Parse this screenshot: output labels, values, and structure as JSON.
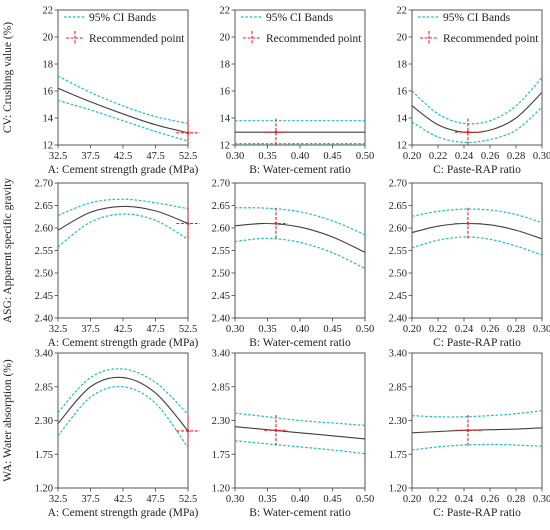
{
  "figure": {
    "legend_ci": "95% CI Bands",
    "legend_rec": "Recommended point",
    "colors": {
      "fit": "#404040",
      "ci": "#1fbfbf",
      "rec": "#e8202a",
      "axis": "#444444"
    }
  },
  "chart_data": [
    {
      "type": "line",
      "row": 0,
      "col": 0,
      "ylabel": "CV: Crushing value (%)",
      "xlabel": "A: Cement strength grade (MPa)",
      "xticks": [
        "32.5",
        "37.5",
        "42.5",
        "47.5",
        "52.5"
      ],
      "xlim": [
        32.5,
        52.5
      ],
      "yticks": [
        "12",
        "14",
        "16",
        "18",
        "20",
        "22"
      ],
      "ylim": [
        12,
        22
      ],
      "x": [
        32.5,
        37.5,
        42.5,
        47.5,
        52.5
      ],
      "series": [
        {
          "role": "fit",
          "values": [
            16.2,
            15.2,
            14.3,
            13.5,
            12.9
          ]
        },
        {
          "role": "ci_upper",
          "values": [
            17.1,
            15.9,
            14.9,
            14.1,
            13.6
          ]
        },
        {
          "role": "ci_lower",
          "values": [
            15.3,
            14.6,
            13.8,
            13.0,
            12.3
          ]
        }
      ],
      "recommended": {
        "x": 52.5,
        "y": 12.9,
        "x_err": 1.8,
        "y_err": 1.0
      },
      "legend": true
    },
    {
      "type": "line",
      "row": 0,
      "col": 1,
      "ylabel": "",
      "xlabel": "B: Water-cement ratio",
      "xticks": [
        "0.30",
        "0.35",
        "0.40",
        "0.45",
        "0.50"
      ],
      "xlim": [
        0.3,
        0.5
      ],
      "yticks": [
        "12",
        "14",
        "16",
        "18",
        "20",
        "22"
      ],
      "ylim": [
        12,
        22
      ],
      "x": [
        0.3,
        0.35,
        0.4,
        0.45,
        0.5
      ],
      "series": [
        {
          "role": "fit",
          "values": [
            12.95,
            12.95,
            12.95,
            12.95,
            12.95
          ]
        },
        {
          "role": "ci_upper",
          "values": [
            13.8,
            13.8,
            13.8,
            13.8,
            13.8
          ]
        },
        {
          "role": "ci_lower",
          "values": [
            12.1,
            12.1,
            12.1,
            12.1,
            12.1
          ]
        }
      ],
      "recommended": {
        "x": 0.363,
        "y": 12.95,
        "x_err": 0.018,
        "y_err": 1.0
      },
      "legend": true
    },
    {
      "type": "line",
      "row": 0,
      "col": 2,
      "ylabel": "",
      "xlabel": "C: Paste-RAP ratio",
      "xticks": [
        "0.20",
        "0.22",
        "0.24",
        "0.26",
        "0.28",
        "0.30"
      ],
      "xlim": [
        0.2,
        0.3
      ],
      "yticks": [
        "12",
        "14",
        "16",
        "18",
        "20",
        "22"
      ],
      "ylim": [
        12,
        22
      ],
      "x": [
        0.2,
        0.22,
        0.24,
        0.26,
        0.28,
        0.3
      ],
      "series": [
        {
          "role": "fit",
          "values": [
            14.9,
            13.5,
            12.95,
            13.1,
            14.0,
            15.9
          ]
        },
        {
          "role": "ci_upper",
          "values": [
            16.0,
            14.3,
            13.6,
            13.8,
            14.9,
            17.0
          ]
        },
        {
          "role": "ci_lower",
          "values": [
            13.7,
            12.6,
            12.2,
            12.4,
            13.1,
            14.8
          ]
        }
      ],
      "recommended": {
        "x": 0.243,
        "y": 12.95,
        "x_err": 0.01,
        "y_err": 1.0
      },
      "legend": true
    },
    {
      "type": "line",
      "row": 1,
      "col": 0,
      "ylabel": "ASG: Apparent specific gravity",
      "xlabel": "A: Cement strength grade (MPa)",
      "xticks": [
        "32.5",
        "37.5",
        "42.5",
        "47.5",
        "52.5"
      ],
      "xlim": [
        32.5,
        52.5
      ],
      "yticks": [
        "2.40",
        "2.45",
        "2.50",
        "2.55",
        "2.60",
        "2.65",
        "2.70"
      ],
      "ylim": [
        2.4,
        2.7
      ],
      "x": [
        32.5,
        37.5,
        42.5,
        47.5,
        52.5
      ],
      "series": [
        {
          "role": "fit",
          "values": [
            2.595,
            2.635,
            2.648,
            2.638,
            2.61
          ]
        },
        {
          "role": "ci_upper",
          "values": [
            2.628,
            2.656,
            2.664,
            2.656,
            2.643
          ]
        },
        {
          "role": "ci_lower",
          "values": [
            2.558,
            2.613,
            2.631,
            2.617,
            2.575
          ]
        }
      ],
      "recommended": {
        "x": 52.5,
        "y": 2.61,
        "x_err": 1.8,
        "y_err": 0.035
      },
      "legend": false
    },
    {
      "type": "line",
      "row": 1,
      "col": 1,
      "ylabel": "",
      "xlabel": "B: Water-cement ratio",
      "xticks": [
        "0.30",
        "0.35",
        "0.40",
        "0.45",
        "0.50"
      ],
      "xlim": [
        0.3,
        0.5
      ],
      "yticks": [
        "2.40",
        "2.45",
        "2.50",
        "2.55",
        "2.60",
        "2.65",
        "2.70"
      ],
      "ylim": [
        2.4,
        2.7
      ],
      "x": [
        0.3,
        0.35,
        0.4,
        0.45,
        0.5
      ],
      "series": [
        {
          "role": "fit",
          "values": [
            2.605,
            2.61,
            2.602,
            2.58,
            2.546
          ]
        },
        {
          "role": "ci_upper",
          "values": [
            2.645,
            2.644,
            2.636,
            2.616,
            2.585
          ]
        },
        {
          "role": "ci_lower",
          "values": [
            2.57,
            2.577,
            2.568,
            2.545,
            2.51
          ]
        }
      ],
      "recommended": {
        "x": 0.363,
        "y": 2.61,
        "x_err": 0.018,
        "y_err": 0.035
      },
      "legend": false
    },
    {
      "type": "line",
      "row": 1,
      "col": 2,
      "ylabel": "",
      "xlabel": "C: Paste-RAP ratio",
      "xticks": [
        "0.20",
        "0.22",
        "0.24",
        "0.26",
        "0.28",
        "0.30"
      ],
      "xlim": [
        0.2,
        0.3
      ],
      "yticks": [
        "2.40",
        "2.45",
        "2.50",
        "2.55",
        "2.60",
        "2.65",
        "2.70"
      ],
      "ylim": [
        2.4,
        2.7
      ],
      "x": [
        0.2,
        0.22,
        0.24,
        0.26,
        0.28,
        0.3
      ],
      "series": [
        {
          "role": "fit",
          "values": [
            2.59,
            2.604,
            2.61,
            2.607,
            2.595,
            2.576
          ]
        },
        {
          "role": "ci_upper",
          "values": [
            2.626,
            2.637,
            2.642,
            2.64,
            2.63,
            2.612
          ]
        },
        {
          "role": "ci_lower",
          "values": [
            2.556,
            2.573,
            2.58,
            2.575,
            2.56,
            2.54
          ]
        }
      ],
      "recommended": {
        "x": 0.243,
        "y": 2.61,
        "x_err": 0.01,
        "y_err": 0.035
      },
      "legend": false
    },
    {
      "type": "line",
      "row": 2,
      "col": 0,
      "ylabel": "WA: Water absorption (%)",
      "xlabel": "A: Cement strength grade (MPa)",
      "xticks": [
        "32.5",
        "37.5",
        "42.5",
        "47.5",
        "52.5"
      ],
      "xlim": [
        32.5,
        52.5
      ],
      "yticks": [
        "1.20",
        "1.75",
        "2.30",
        "2.85",
        "3.40"
      ],
      "ylim": [
        1.2,
        3.4
      ],
      "x": [
        32.5,
        37.5,
        42.5,
        47.5,
        52.5
      ],
      "series": [
        {
          "role": "fit",
          "values": [
            2.25,
            2.85,
            3.0,
            2.75,
            2.13
          ]
        },
        {
          "role": "ci_upper",
          "values": [
            2.43,
            3.0,
            3.14,
            2.92,
            2.4
          ]
        },
        {
          "role": "ci_lower",
          "values": [
            2.05,
            2.68,
            2.85,
            2.58,
            1.86
          ]
        }
      ],
      "recommended": {
        "x": 52.5,
        "y": 2.13,
        "x_err": 1.8,
        "y_err": 0.25
      },
      "legend": false
    },
    {
      "type": "line",
      "row": 2,
      "col": 1,
      "ylabel": "",
      "xlabel": "B: Water-cement ratio",
      "xticks": [
        "0.30",
        "0.35",
        "0.40",
        "0.45",
        "0.50"
      ],
      "xlim": [
        0.3,
        0.5
      ],
      "yticks": [
        "1.20",
        "1.75",
        "2.30",
        "2.85",
        "3.40"
      ],
      "ylim": [
        1.2,
        3.4
      ],
      "x": [
        0.3,
        0.35,
        0.4,
        0.45,
        0.5
      ],
      "series": [
        {
          "role": "fit",
          "values": [
            2.2,
            2.15,
            2.1,
            2.05,
            2.0
          ]
        },
        {
          "role": "ci_upper",
          "values": [
            2.42,
            2.36,
            2.3,
            2.26,
            2.22
          ]
        },
        {
          "role": "ci_lower",
          "values": [
            1.97,
            1.92,
            1.87,
            1.82,
            1.76
          ]
        }
      ],
      "recommended": {
        "x": 0.363,
        "y": 2.14,
        "x_err": 0.018,
        "y_err": 0.25
      },
      "legend": false
    },
    {
      "type": "line",
      "row": 2,
      "col": 2,
      "ylabel": "",
      "xlabel": "C: Paste-RAP ratio",
      "xticks": [
        "0.20",
        "0.22",
        "0.24",
        "0.26",
        "0.28",
        "0.30"
      ],
      "xlim": [
        0.2,
        0.3
      ],
      "yticks": [
        "1.20",
        "1.75",
        "2.30",
        "2.85",
        "3.40"
      ],
      "ylim": [
        1.2,
        3.4
      ],
      "x": [
        0.2,
        0.22,
        0.24,
        0.26,
        0.28,
        0.3
      ],
      "series": [
        {
          "role": "fit",
          "values": [
            2.1,
            2.12,
            2.14,
            2.15,
            2.16,
            2.18
          ]
        },
        {
          "role": "ci_upper",
          "values": [
            2.38,
            2.36,
            2.36,
            2.38,
            2.41,
            2.46
          ]
        },
        {
          "role": "ci_lower",
          "values": [
            1.82,
            1.87,
            1.9,
            1.91,
            1.9,
            1.88
          ]
        }
      ],
      "recommended": {
        "x": 0.243,
        "y": 2.14,
        "x_err": 0.01,
        "y_err": 0.25
      },
      "legend": false
    }
  ]
}
